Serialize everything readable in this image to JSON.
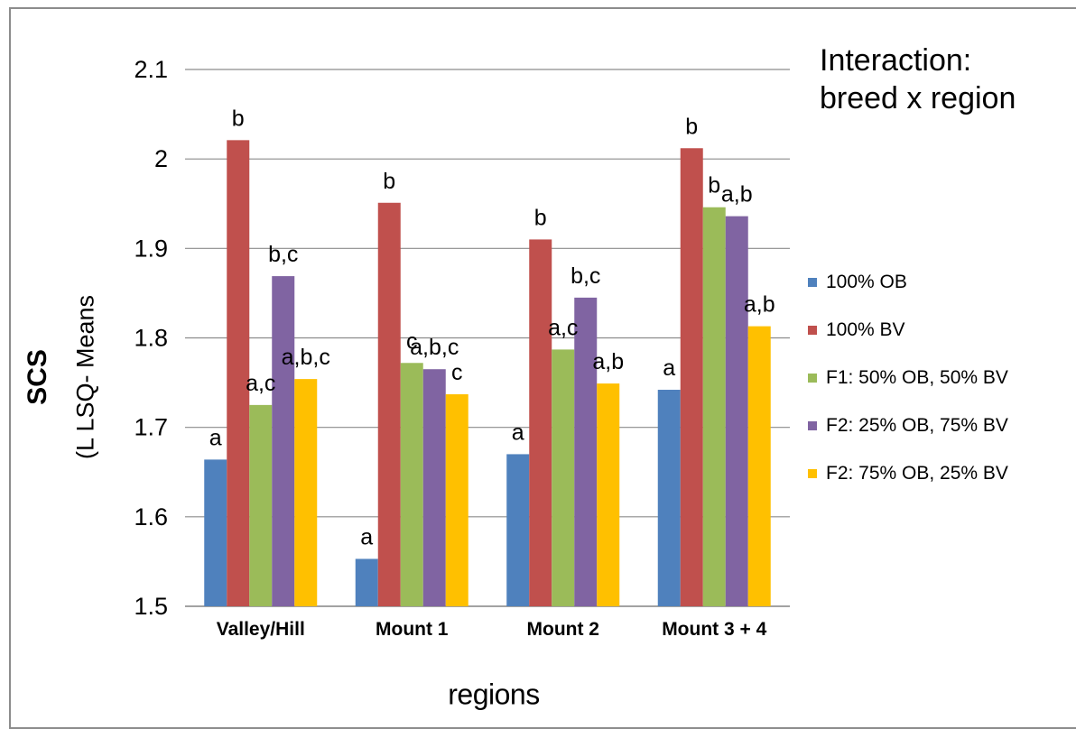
{
  "chart_data": {
    "type": "bar",
    "title": "",
    "annotation": [
      "Interaction:",
      "breed x region"
    ],
    "ylabel_main": "SCS",
    "ylabel_sub": "(L LSQ- Means",
    "xlabel": "regions",
    "ylim": [
      1.5,
      2.1
    ],
    "yticks": [
      "1.5",
      "1.6",
      "1.7",
      "1.8",
      "1.9",
      "2",
      "2.1"
    ],
    "grid": true,
    "legend_position": "right",
    "categories": [
      "Valley/Hill",
      "Mount 1",
      "Mount 2",
      "Mount 3 + 4"
    ],
    "series": [
      {
        "name": "100% OB",
        "color": "#4f81bd",
        "values": [
          1.664,
          1.553,
          1.67,
          1.742
        ],
        "labels": [
          "a",
          "a",
          "a",
          "a"
        ]
      },
      {
        "name": "100% BV",
        "color": "#c0504d",
        "values": [
          2.021,
          1.951,
          1.91,
          2.012
        ],
        "labels": [
          "b",
          "b",
          "b",
          "b"
        ]
      },
      {
        "name": "F1: 50% OB, 50% BV",
        "color": "#9bbb59",
        "values": [
          1.725,
          1.772,
          1.787,
          1.946
        ],
        "labels": [
          "a,c",
          "c",
          "a,c",
          "b"
        ]
      },
      {
        "name": "F2: 25% OB, 75% BV",
        "color": "#8064a2",
        "values": [
          1.869,
          1.765,
          1.845,
          1.936
        ],
        "labels": [
          "b,c",
          "a,b,c",
          "b,c",
          "a,b"
        ]
      },
      {
        "name": "F2: 75% OB, 25% BV",
        "color": "#ffc000",
        "values": [
          1.754,
          1.737,
          1.749,
          1.813
        ],
        "labels": [
          "a,b,c",
          "c",
          "a,b",
          "a,b"
        ]
      }
    ]
  }
}
